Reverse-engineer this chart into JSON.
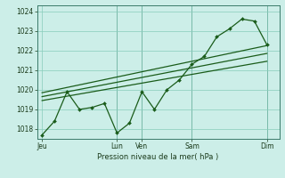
{
  "bg_color": "#cceee8",
  "grid_color": "#88ccbb",
  "line_color": "#1a5c1a",
  "xlabel": "Pression niveau de la mer( hPa )",
  "ylim": [
    1017.5,
    1024.3
  ],
  "xlim": [
    -0.2,
    9.5
  ],
  "yticks": [
    1018,
    1019,
    1020,
    1021,
    1022,
    1023,
    1024
  ],
  "x_tick_positions": [
    0,
    3,
    4,
    6,
    9
  ],
  "x_tick_labels": [
    "Jeu",
    "Lun",
    "Ven",
    "Sam",
    "Dim"
  ],
  "vlines": [
    3,
    4,
    6,
    9
  ],
  "main_x": [
    0,
    0.5,
    1.0,
    1.5,
    2.0,
    2.5,
    3.0,
    3.5,
    4.0,
    4.5,
    5.0,
    5.5,
    6.0,
    6.5,
    7.0,
    7.5,
    8.0,
    8.5,
    9.0
  ],
  "main_y": [
    1017.7,
    1018.4,
    1019.9,
    1019.0,
    1019.1,
    1019.3,
    1017.8,
    1018.3,
    1019.9,
    1019.0,
    1020.0,
    1020.5,
    1021.3,
    1021.7,
    1022.7,
    1023.1,
    1023.6,
    1023.5,
    1022.3
  ],
  "trend1_x": [
    0,
    9
  ],
  "trend1_y": [
    1019.85,
    1022.25
  ],
  "trend2_x": [
    0,
    9
  ],
  "trend2_y": [
    1019.65,
    1021.85
  ],
  "trend3_x": [
    0,
    9
  ],
  "trend3_y": [
    1019.45,
    1021.45
  ]
}
